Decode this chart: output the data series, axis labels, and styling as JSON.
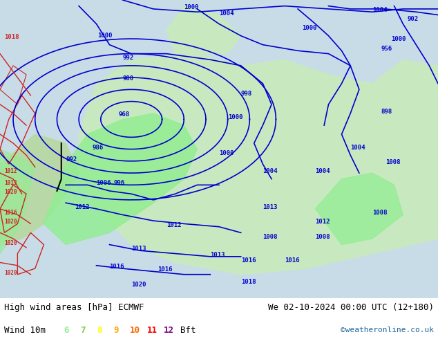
{
  "title_left": "High wind areas [hPa] ECMWF",
  "title_right": "We 02-10-2024 00:00 UTC (12+180)",
  "legend_label": "Wind 10m",
  "legend_values": [
    "6",
    "7",
    "8",
    "9",
    "10",
    "11",
    "12"
  ],
  "legend_colors": [
    "#90ee90",
    "#7ec850",
    "#ffff00",
    "#ffa500",
    "#ff6600",
    "#ff0000",
    "#800080"
  ],
  "legend_suffix": "Bft",
  "credit": "©weatheronline.co.uk",
  "bg_color": "#f0f0e8",
  "map_bg": "#e8f4e8",
  "ocean_color": "#d0e8f0",
  "border_color": "#888888",
  "isobar_color": "#0000cc",
  "isobar_color_red": "#cc0000",
  "isobar_color_black": "#000000",
  "footer_bg": "#ffffff",
  "title_fontsize": 9,
  "credit_fontsize": 8,
  "legend_fontsize": 9
}
